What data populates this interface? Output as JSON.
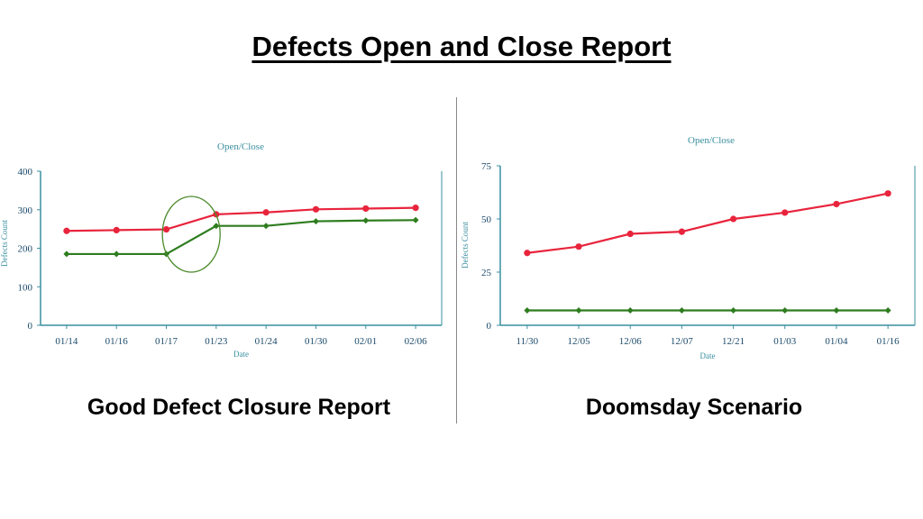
{
  "page": {
    "title": "Defects Open and Close Report",
    "captions": [
      "Good Defect Closure Report",
      "Doomsday Scenario"
    ]
  },
  "colors": {
    "axis": "#3a8fa0",
    "open": "#e8243c",
    "closed": "#2e7d1f",
    "highlight": "#4a8a2a"
  },
  "chart_data": [
    {
      "type": "line",
      "title": "Open/Close",
      "xlabel": "Date",
      "ylabel": "Defects Count",
      "categories": [
        "01/14",
        "01/16",
        "01/17",
        "01/23",
        "01/24",
        "01/30",
        "02/01",
        "02/06"
      ],
      "ylim": [
        0,
        400
      ],
      "yticks": [
        0,
        100,
        200,
        300,
        400
      ],
      "series": [
        {
          "color": "#e8243c",
          "marker": "circle",
          "values": [
            245,
            247,
            249,
            288,
            293,
            301,
            303,
            305
          ]
        },
        {
          "color": "#2e7d1f",
          "marker": "diamond",
          "values": [
            185,
            185,
            185,
            258,
            258,
            270,
            272,
            273
          ]
        }
      ],
      "annotation": {
        "shape": "ellipse",
        "around": "01/17-01/23 transition"
      }
    },
    {
      "type": "line",
      "title": "Open/Close",
      "xlabel": "Date",
      "ylabel": "Defects Count",
      "categories": [
        "11/30",
        "12/05",
        "12/06",
        "12/07",
        "12/21",
        "01/03",
        "01/04",
        "01/16"
      ],
      "ylim": [
        0,
        75
      ],
      "yticks": [
        0,
        25,
        50,
        75
      ],
      "series": [
        {
          "color": "#e8243c",
          "marker": "circle",
          "values": [
            34,
            37,
            43,
            44,
            50,
            53,
            57,
            62
          ]
        },
        {
          "color": "#2e7d1f",
          "marker": "diamond",
          "values": [
            7,
            7,
            7,
            7,
            7,
            7,
            7,
            7
          ]
        }
      ]
    }
  ]
}
